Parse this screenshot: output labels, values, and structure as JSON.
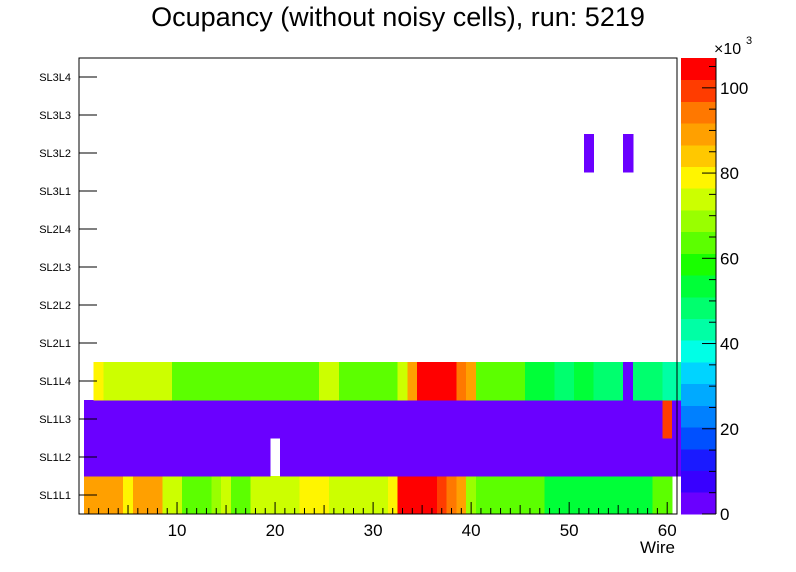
{
  "chart_data": {
    "type": "heatmap",
    "title": "Ocupancy (without noisy cells), run: 5219",
    "xlabel": "Wire",
    "ylabel": "",
    "xlim": [
      0,
      61
    ],
    "x_ticks": [
      10,
      20,
      30,
      40,
      50,
      60
    ],
    "y_categories": [
      "SL1L1",
      "SL1L2",
      "SL1L3",
      "SL1L4",
      "SL2L1",
      "SL2L2",
      "SL2L3",
      "SL2L4",
      "SL3L1",
      "SL3L2",
      "SL3L3",
      "SL3L4"
    ],
    "z_range": [
      0,
      107000
    ],
    "z_multiplier_label": "×10",
    "z_multiplier_exp": "3",
    "z_ticks": [
      {
        "value": 0,
        "label": "0"
      },
      {
        "value": 20000,
        "label": "20"
      },
      {
        "value": 40000,
        "label": "40"
      },
      {
        "value": 60000,
        "label": "60"
      },
      {
        "value": 80000,
        "label": "80"
      },
      {
        "value": 100000,
        "label": "100"
      }
    ],
    "rows": {
      "SL1L1": [
        null,
        87000,
        87000,
        87000,
        87000,
        78000,
        87000,
        87000,
        87000,
        76000,
        72000,
        65000,
        65000,
        65000,
        68000,
        72000,
        66000,
        66000,
        72000,
        72000,
        76000,
        76000,
        76000,
        78000,
        78000,
        78000,
        76000,
        76000,
        76000,
        76000,
        76000,
        76000,
        78000,
        107000,
        107000,
        107000,
        107000,
        100000,
        95000,
        90000,
        68000,
        65000,
        65000,
        65000,
        65000,
        62000,
        62000,
        62000,
        55000,
        55000,
        55000,
        55000,
        55000,
        55000,
        55000,
        55000,
        55000,
        55000,
        55000,
        62000,
        62000,
        null
      ],
      "SL1L2": [
        null,
        4000,
        4000,
        4000,
        4000,
        4000,
        4000,
        4000,
        4000,
        4000,
        4000,
        4000,
        4000,
        4000,
        4000,
        4000,
        4000,
        4000,
        4000,
        4000,
        null,
        4000,
        4000,
        4000,
        4000,
        4000,
        4000,
        4000,
        4000,
        4000,
        4000,
        4000,
        4000,
        4000,
        4000,
        4000,
        4000,
        4000,
        4000,
        4000,
        4000,
        4000,
        4000,
        4000,
        4000,
        4000,
        4000,
        4000,
        4000,
        4000,
        4000,
        4000,
        4000,
        4000,
        4000,
        4000,
        4000,
        4000,
        4000,
        4000,
        4000,
        4000
      ],
      "SL1L3": [
        null,
        4000,
        4000,
        4000,
        4000,
        4000,
        4000,
        4000,
        4000,
        4000,
        4000,
        4000,
        4000,
        4000,
        4000,
        4000,
        4000,
        4000,
        4000,
        4000,
        4000,
        4000,
        4000,
        4000,
        4000,
        4000,
        4000,
        4000,
        4000,
        4000,
        4000,
        4000,
        4000,
        4000,
        4000,
        4000,
        4000,
        4000,
        4000,
        4000,
        4000,
        4000,
        4000,
        4000,
        4000,
        4000,
        4000,
        4000,
        4000,
        4000,
        4000,
        4000,
        4000,
        4000,
        4000,
        4000,
        4000,
        4000,
        4000,
        4000,
        97000,
        4000
      ],
      "SL1L4": [
        null,
        null,
        78000,
        72000,
        76000,
        72000,
        76000,
        76000,
        76000,
        72000,
        65000,
        65000,
        62000,
        62000,
        65000,
        65000,
        62000,
        62000,
        62000,
        66000,
        66000,
        66000,
        66000,
        66000,
        66000,
        72000,
        72000,
        66000,
        66000,
        66000,
        66000,
        66000,
        66000,
        74000,
        88000,
        107000,
        107000,
        102000,
        102000,
        95000,
        88000,
        62000,
        62000,
        62000,
        62000,
        62000,
        55000,
        55000,
        55000,
        50000,
        50000,
        55000,
        55000,
        50000,
        50000,
        50000,
        4000,
        50000,
        50000,
        50000,
        44000,
        44000
      ],
      "SL2L1": [],
      "SL2L2": [],
      "SL2L3": [],
      "SL2L4": [],
      "SL3L1": [],
      "SL3L2": {
        "52": 4000,
        "56": 4000
      },
      "SL3L3": [],
      "SL3L4": []
    }
  }
}
